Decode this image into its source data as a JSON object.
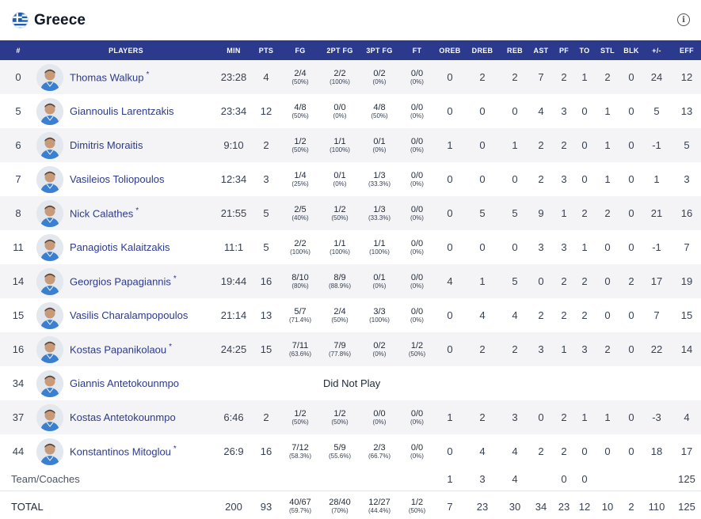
{
  "header": {
    "team": "Greece",
    "flag_icon": "greece-flag-icon",
    "info_icon": "info-icon"
  },
  "colors": {
    "header_bg": "#2b3a8c",
    "link": "#2b3a8c",
    "alt_row": "#f4f4f6"
  },
  "columns": [
    "#",
    "PLAYERS",
    "MIN",
    "PTS",
    "FG",
    "2PT FG",
    "3PT FG",
    "FT",
    "OREB",
    "DREB",
    "REB",
    "AST",
    "PF",
    "TO",
    "STL",
    "BLK",
    "+/-",
    "EFF"
  ],
  "players": [
    {
      "no": "0",
      "name": "Thomas Walkup",
      "starter": "*",
      "min": "23:28",
      "pts": "4",
      "fg": "2/4",
      "fg_pct": "(50%)",
      "fg2": "2/2",
      "fg2_pct": "(100%)",
      "fg3": "0/2",
      "fg3_pct": "(0%)",
      "ft": "0/0",
      "ft_pct": "(0%)",
      "oreb": "0",
      "dreb": "2",
      "reb": "2",
      "ast": "7",
      "pf": "2",
      "to": "1",
      "stl": "2",
      "blk": "0",
      "pm": "24",
      "eff": "12"
    },
    {
      "no": "5",
      "name": "Giannoulis Larentzakis",
      "starter": "",
      "min": "23:34",
      "pts": "12",
      "fg": "4/8",
      "fg_pct": "(50%)",
      "fg2": "0/0",
      "fg2_pct": "(0%)",
      "fg3": "4/8",
      "fg3_pct": "(50%)",
      "ft": "0/0",
      "ft_pct": "(0%)",
      "oreb": "0",
      "dreb": "0",
      "reb": "0",
      "ast": "4",
      "pf": "3",
      "to": "0",
      "stl": "1",
      "blk": "0",
      "pm": "5",
      "eff": "13"
    },
    {
      "no": "6",
      "name": "Dimitris Moraitis",
      "starter": "",
      "min": "9:10",
      "pts": "2",
      "fg": "1/2",
      "fg_pct": "(50%)",
      "fg2": "1/1",
      "fg2_pct": "(100%)",
      "fg3": "0/1",
      "fg3_pct": "(0%)",
      "ft": "0/0",
      "ft_pct": "(0%)",
      "oreb": "1",
      "dreb": "0",
      "reb": "1",
      "ast": "2",
      "pf": "2",
      "to": "0",
      "stl": "1",
      "blk": "0",
      "pm": "-1",
      "eff": "5"
    },
    {
      "no": "7",
      "name": "Vasileios Toliopoulos",
      "starter": "",
      "min": "12:34",
      "pts": "3",
      "fg": "1/4",
      "fg_pct": "(25%)",
      "fg2": "0/1",
      "fg2_pct": "(0%)",
      "fg3": "1/3",
      "fg3_pct": "(33.3%)",
      "ft": "0/0",
      "ft_pct": "(0%)",
      "oreb": "0",
      "dreb": "0",
      "reb": "0",
      "ast": "2",
      "pf": "3",
      "to": "0",
      "stl": "1",
      "blk": "0",
      "pm": "1",
      "eff": "3"
    },
    {
      "no": "8",
      "name": "Nick Calathes",
      "starter": "*",
      "min": "21:55",
      "pts": "5",
      "fg": "2/5",
      "fg_pct": "(40%)",
      "fg2": "1/2",
      "fg2_pct": "(50%)",
      "fg3": "1/3",
      "fg3_pct": "(33.3%)",
      "ft": "0/0",
      "ft_pct": "(0%)",
      "oreb": "0",
      "dreb": "5",
      "reb": "5",
      "ast": "9",
      "pf": "1",
      "to": "2",
      "stl": "2",
      "blk": "0",
      "pm": "21",
      "eff": "16"
    },
    {
      "no": "11",
      "name": "Panagiotis Kalaitzakis",
      "starter": "",
      "min": "11:1",
      "pts": "5",
      "fg": "2/2",
      "fg_pct": "(100%)",
      "fg2": "1/1",
      "fg2_pct": "(100%)",
      "fg3": "1/1",
      "fg3_pct": "(100%)",
      "ft": "0/0",
      "ft_pct": "(0%)",
      "oreb": "0",
      "dreb": "0",
      "reb": "0",
      "ast": "3",
      "pf": "3",
      "to": "1",
      "stl": "0",
      "blk": "0",
      "pm": "-1",
      "eff": "7"
    },
    {
      "no": "14",
      "name": "Georgios Papagiannis",
      "starter": "*",
      "min": "19:44",
      "pts": "16",
      "fg": "8/10",
      "fg_pct": "(80%)",
      "fg2": "8/9",
      "fg2_pct": "(88.9%)",
      "fg3": "0/1",
      "fg3_pct": "(0%)",
      "ft": "0/0",
      "ft_pct": "(0%)",
      "oreb": "4",
      "dreb": "1",
      "reb": "5",
      "ast": "0",
      "pf": "2",
      "to": "2",
      "stl": "0",
      "blk": "2",
      "pm": "17",
      "eff": "19"
    },
    {
      "no": "15",
      "name": "Vasilis Charalampopoulos",
      "starter": "",
      "min": "21:14",
      "pts": "13",
      "fg": "5/7",
      "fg_pct": "(71.4%)",
      "fg2": "2/4",
      "fg2_pct": "(50%)",
      "fg3": "3/3",
      "fg3_pct": "(100%)",
      "ft": "0/0",
      "ft_pct": "(0%)",
      "oreb": "0",
      "dreb": "4",
      "reb": "4",
      "ast": "2",
      "pf": "2",
      "to": "2",
      "stl": "0",
      "blk": "0",
      "pm": "7",
      "eff": "15"
    },
    {
      "no": "16",
      "name": "Kostas Papanikolaou",
      "starter": "*",
      "min": "24:25",
      "pts": "15",
      "fg": "7/11",
      "fg_pct": "(63.6%)",
      "fg2": "7/9",
      "fg2_pct": "(77.8%)",
      "fg3": "0/2",
      "fg3_pct": "(0%)",
      "ft": "1/2",
      "ft_pct": "(50%)",
      "oreb": "0",
      "dreb": "2",
      "reb": "2",
      "ast": "3",
      "pf": "1",
      "to": "3",
      "stl": "2",
      "blk": "0",
      "pm": "22",
      "eff": "14"
    },
    {
      "no": "34",
      "name": "Giannis Antetokounmpo",
      "starter": "",
      "dnp": "Did Not Play"
    },
    {
      "no": "37",
      "name": "Kostas Antetokounmpo",
      "starter": "",
      "min": "6:46",
      "pts": "2",
      "fg": "1/2",
      "fg_pct": "(50%)",
      "fg2": "1/2",
      "fg2_pct": "(50%)",
      "fg3": "0/0",
      "fg3_pct": "(0%)",
      "ft": "0/0",
      "ft_pct": "(0%)",
      "oreb": "1",
      "dreb": "2",
      "reb": "3",
      "ast": "0",
      "pf": "2",
      "to": "1",
      "stl": "1",
      "blk": "0",
      "pm": "-3",
      "eff": "4"
    },
    {
      "no": "44",
      "name": "Konstantinos Mitoglou",
      "starter": "*",
      "min": "26:9",
      "pts": "16",
      "fg": "7/12",
      "fg_pct": "(58.3%)",
      "fg2": "5/9",
      "fg2_pct": "(55.6%)",
      "fg3": "2/3",
      "fg3_pct": "(66.7%)",
      "ft": "0/0",
      "ft_pct": "(0%)",
      "oreb": "0",
      "dreb": "4",
      "reb": "4",
      "ast": "2",
      "pf": "2",
      "to": "0",
      "stl": "0",
      "blk": "0",
      "pm": "18",
      "eff": "17"
    }
  ],
  "team_coaches": {
    "label": "Team/Coaches",
    "oreb": "1",
    "dreb": "3",
    "reb": "4",
    "ast": "",
    "pf": "0",
    "to": "0",
    "stl": "",
    "blk": "",
    "pm": "",
    "eff": "125"
  },
  "total": {
    "label": "TOTAL",
    "min": "200",
    "pts": "93",
    "fg": "40/67",
    "fg_pct": "(59.7%)",
    "fg2": "28/40",
    "fg2_pct": "(70%)",
    "fg3": "12/27",
    "fg3_pct": "(44.4%)",
    "ft": "1/2",
    "ft_pct": "(50%)",
    "oreb": "7",
    "dreb": "23",
    "reb": "30",
    "ast": "34",
    "pf": "23",
    "to": "12",
    "stl": "10",
    "blk": "2",
    "pm": "110",
    "eff": "125"
  }
}
